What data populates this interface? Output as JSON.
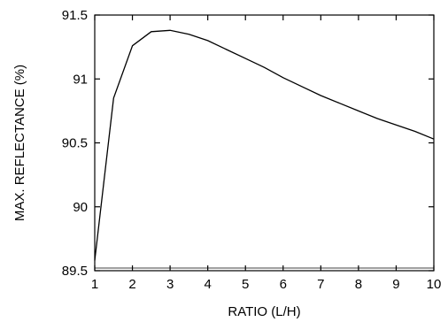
{
  "chart_data": {
    "type": "line",
    "title": "",
    "xlabel": "RATIO (L/H)",
    "ylabel": "MAX. REFLECTANCE (%)",
    "xlim": [
      1,
      10
    ],
    "ylim": [
      89.5,
      91.5
    ],
    "x_ticks": [
      1,
      2,
      3,
      4,
      5,
      6,
      7,
      8,
      9,
      10
    ],
    "y_ticks": [
      89.5,
      90,
      90.5,
      91,
      91.5
    ],
    "x_tick_labels": [
      "1",
      "2",
      "3",
      "4",
      "5",
      "6",
      "7",
      "8",
      "9",
      "10"
    ],
    "y_tick_labels": [
      "89.5",
      "90",
      "90.5",
      "91",
      "91.5"
    ],
    "grid": false,
    "series": [
      {
        "x": [
          1,
          1.5,
          2,
          2.5,
          3,
          3.5,
          4,
          4.5,
          5,
          5.5,
          6,
          6.5,
          7,
          7.5,
          8,
          8.5,
          9,
          9.5,
          10
        ],
        "y": [
          89.58,
          90.85,
          91.26,
          91.37,
          91.38,
          91.35,
          91.3,
          91.23,
          91.16,
          91.09,
          91.01,
          90.94,
          90.87,
          90.81,
          90.75,
          90.69,
          90.64,
          90.59,
          90.53
        ]
      }
    ]
  }
}
